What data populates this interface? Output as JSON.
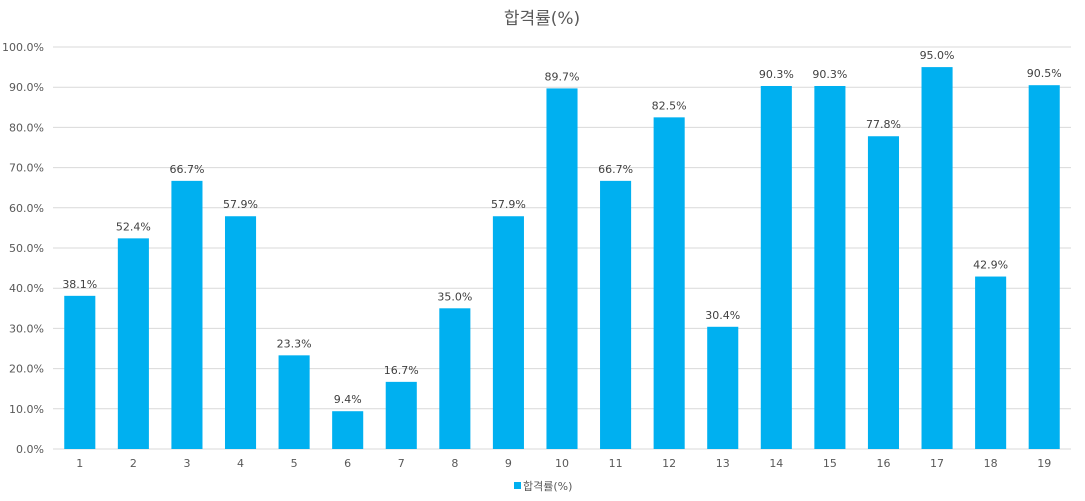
{
  "chart_data": {
    "type": "bar",
    "title": "합격률(%)",
    "xlabel": "",
    "ylabel": "",
    "categories": [
      "1",
      "2",
      "3",
      "4",
      "5",
      "6",
      "7",
      "8",
      "9",
      "10",
      "11",
      "12",
      "13",
      "14",
      "15",
      "16",
      "17",
      "18",
      "19"
    ],
    "series": [
      {
        "name": "합격률(%)",
        "color": "#00B0F0",
        "values": [
          38.1,
          52.4,
          66.7,
          57.9,
          23.3,
          9.4,
          16.7,
          35.0,
          57.9,
          89.7,
          66.7,
          82.5,
          30.4,
          90.3,
          90.3,
          77.8,
          95.0,
          42.9,
          90.5
        ],
        "labels": [
          "38.1%",
          "52.4%",
          "66.7%",
          "57.9%",
          "23.3%",
          "9.4%",
          "16.7%",
          "35.0%",
          "57.9%",
          "89.7%",
          "66.7%",
          "82.5%",
          "30.4%",
          "90.3%",
          "90.3%",
          "77.8%",
          "95.0%",
          "42.9%",
          "90.5%"
        ]
      }
    ],
    "ylim": [
      0,
      100
    ],
    "yticks": [
      "0.0%",
      "10.0%",
      "20.0%",
      "30.0%",
      "40.0%",
      "50.0%",
      "60.0%",
      "70.0%",
      "80.0%",
      "90.0%",
      "100.0%"
    ],
    "grid": true,
    "legend": "bottom"
  }
}
